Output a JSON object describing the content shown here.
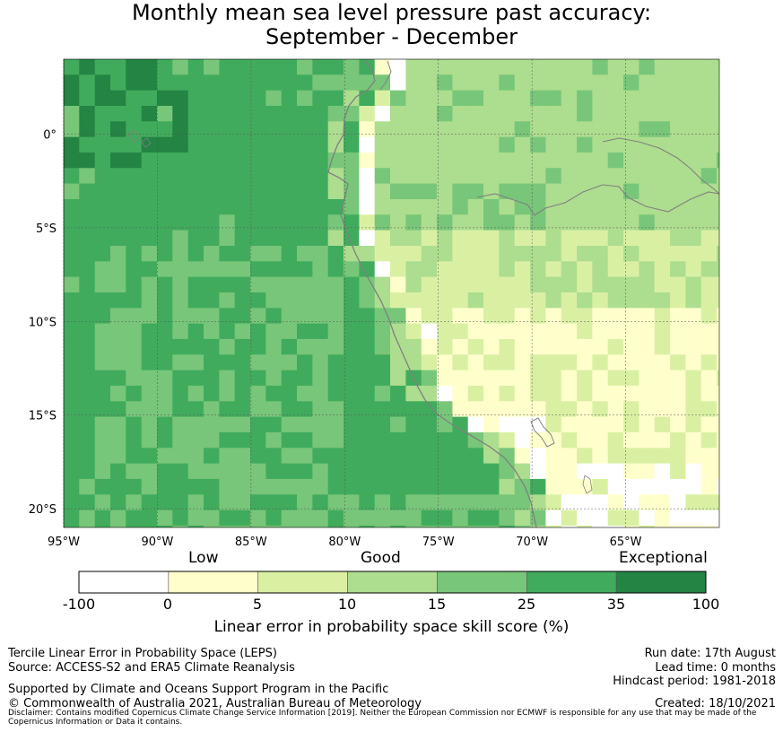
{
  "title_line1": "Monthly mean sea level pressure past accuracy:",
  "title_line2": "September - December",
  "map": {
    "lon_range": [
      -95,
      -60
    ],
    "lat_range": [
      -21,
      4
    ],
    "x_ticks": [
      {
        "lon": -95,
        "label": "95°W"
      },
      {
        "lon": -90,
        "label": "90°W"
      },
      {
        "lon": -85,
        "label": "85°W"
      },
      {
        "lon": -80,
        "label": "80°W"
      },
      {
        "lon": -75,
        "label": "75°W"
      },
      {
        "lon": -70,
        "label": "70°W"
      },
      {
        "lon": -65,
        "label": "65°W"
      }
    ],
    "y_ticks": [
      {
        "lat": 0,
        "label": "0°"
      },
      {
        "lat": -5,
        "label": "5°S"
      },
      {
        "lat": -10,
        "label": "10°S"
      },
      {
        "lat": -15,
        "label": "15°S"
      },
      {
        "lat": -20,
        "label": "20°S"
      }
    ],
    "grid": true
  },
  "colorbar": {
    "label_low": "Low",
    "label_good": "Good",
    "label_exceptional": "Exceptional",
    "ticks": [
      "-100",
      "0",
      "5",
      "10",
      "15",
      "25",
      "35",
      "100"
    ],
    "colors": [
      "#ffffff",
      "#ffffcc",
      "#d9f0a3",
      "#addd8e",
      "#78c679",
      "#41ab5d",
      "#238443"
    ],
    "axis_label": "Linear error in probability space skill score (%)"
  },
  "footer": {
    "line1": "Tercile Linear Error in Probability Space (LEPS)",
    "line2": "Source: ACCESS-S2 and ERA5 Climate Reanalysis",
    "line3": "Supported by Climate and Oceans Support Program in the Pacific",
    "line4": "© Commonwealth of Australia 2021, Australian Bureau of Meteorology",
    "run_date": "Run date: 17th August",
    "lead_time": "Lead time: 0 months",
    "hindcast": "Hindcast period: 1981-2018",
    "created": "Created: 18/10/2021",
    "disclaimer": "Disclaimer: Contains modified Copernicus Climate Change Service Information [2019]. Neither the European Commission nor ECMWF is responsible for any use that may be made of the Copernicus Information or Data it contains."
  }
}
